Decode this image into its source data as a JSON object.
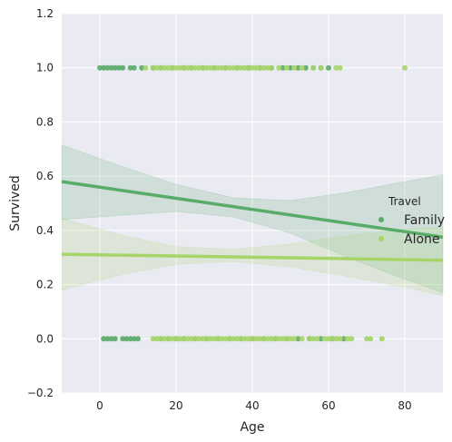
{
  "chart_data": {
    "type": "scatter",
    "xlabel": "Age",
    "ylabel": "Survived",
    "xlim": [
      -10,
      90
    ],
    "ylim": [
      -0.2,
      1.2
    ],
    "x_ticks": [
      "0",
      "20",
      "40",
      "60",
      "80"
    ],
    "y_ticks": [
      "−0.2",
      "0.0",
      "0.2",
      "0.4",
      "0.6",
      "0.8",
      "1.0",
      "1.2"
    ],
    "x_tick_values": [
      0,
      20,
      40,
      60,
      80
    ],
    "y_tick_values": [
      -0.2,
      0.0,
      0.2,
      0.4,
      0.6,
      0.8,
      1.0,
      1.2
    ],
    "grid": true,
    "legend": {
      "title": "Travel",
      "placement": "right"
    },
    "colors": {
      "Family": "#59ab68",
      "Alone": "#a6d469",
      "background": "#eaeaf2",
      "grid": "#ffffff"
    },
    "series": [
      {
        "name": "Family",
        "points": [
          [
            0,
            1
          ],
          [
            1,
            1
          ],
          [
            2,
            1
          ],
          [
            3,
            1
          ],
          [
            4,
            1
          ],
          [
            5,
            1
          ],
          [
            6,
            1
          ],
          [
            8,
            1
          ],
          [
            9,
            1
          ],
          [
            11,
            1
          ],
          [
            14,
            1
          ],
          [
            16,
            1
          ],
          [
            19,
            1
          ],
          [
            22,
            1
          ],
          [
            24,
            1
          ],
          [
            27,
            1
          ],
          [
            30,
            1
          ],
          [
            33,
            1
          ],
          [
            36,
            1
          ],
          [
            39,
            1
          ],
          [
            42,
            1
          ],
          [
            45,
            1
          ],
          [
            48,
            1
          ],
          [
            50,
            1
          ],
          [
            52,
            1
          ],
          [
            54,
            1
          ],
          [
            56,
            1
          ],
          [
            58,
            1
          ],
          [
            60,
            1
          ],
          [
            1,
            0
          ],
          [
            2,
            0
          ],
          [
            3,
            0
          ],
          [
            4,
            0
          ],
          [
            6,
            0
          ],
          [
            7,
            0
          ],
          [
            8,
            0
          ],
          [
            9,
            0
          ],
          [
            10,
            0
          ],
          [
            16,
            0
          ],
          [
            18,
            0
          ],
          [
            20,
            0
          ],
          [
            22,
            0
          ],
          [
            25,
            0
          ],
          [
            28,
            0
          ],
          [
            31,
            0
          ],
          [
            34,
            0
          ],
          [
            37,
            0
          ],
          [
            40,
            0
          ],
          [
            43,
            0
          ],
          [
            46,
            0
          ],
          [
            49,
            0
          ],
          [
            52,
            0
          ],
          [
            55,
            0
          ],
          [
            58,
            0
          ],
          [
            61,
            0
          ],
          [
            64,
            0
          ]
        ],
        "fit": {
          "x": [
            -10,
            90
          ],
          "y": [
            0.58,
            0.375
          ]
        },
        "ci_lower": [
          [
            -10,
            0.44
          ],
          [
            5,
            0.455
          ],
          [
            20,
            0.47
          ],
          [
            35,
            0.45
          ],
          [
            50,
            0.39
          ],
          [
            65,
            0.3
          ],
          [
            80,
            0.22
          ],
          [
            90,
            0.17
          ]
        ],
        "ci_upper": [
          [
            -10,
            0.715
          ],
          [
            5,
            0.64
          ],
          [
            20,
            0.57
          ],
          [
            35,
            0.52
          ],
          [
            50,
            0.51
          ],
          [
            65,
            0.54
          ],
          [
            80,
            0.58
          ],
          [
            90,
            0.605
          ]
        ]
      },
      {
        "name": "Alone",
        "points": [
          [
            12,
            1
          ],
          [
            14,
            1
          ],
          [
            15,
            1
          ],
          [
            16,
            1
          ],
          [
            17,
            1
          ],
          [
            18,
            1
          ],
          [
            19,
            1
          ],
          [
            20,
            1
          ],
          [
            21,
            1
          ],
          [
            22,
            1
          ],
          [
            23,
            1
          ],
          [
            24,
            1
          ],
          [
            25,
            1
          ],
          [
            26,
            1
          ],
          [
            27,
            1
          ],
          [
            28,
            1
          ],
          [
            29,
            1
          ],
          [
            30,
            1
          ],
          [
            31,
            1
          ],
          [
            32,
            1
          ],
          [
            33,
            1
          ],
          [
            34,
            1
          ],
          [
            35,
            1
          ],
          [
            36,
            1
          ],
          [
            37,
            1
          ],
          [
            38,
            1
          ],
          [
            39,
            1
          ],
          [
            40,
            1
          ],
          [
            41,
            1
          ],
          [
            42,
            1
          ],
          [
            43,
            1
          ],
          [
            44,
            1
          ],
          [
            45,
            1
          ],
          [
            47,
            1
          ],
          [
            49,
            1
          ],
          [
            51,
            1
          ],
          [
            53,
            1
          ],
          [
            56,
            1
          ],
          [
            58,
            1
          ],
          [
            62,
            1
          ],
          [
            63,
            1
          ],
          [
            80,
            1
          ],
          [
            14,
            0
          ],
          [
            15,
            0
          ],
          [
            16,
            0
          ],
          [
            17,
            0
          ],
          [
            18,
            0
          ],
          [
            19,
            0
          ],
          [
            20,
            0
          ],
          [
            21,
            0
          ],
          [
            22,
            0
          ],
          [
            23,
            0
          ],
          [
            24,
            0
          ],
          [
            25,
            0
          ],
          [
            26,
            0
          ],
          [
            27,
            0
          ],
          [
            28,
            0
          ],
          [
            29,
            0
          ],
          [
            30,
            0
          ],
          [
            31,
            0
          ],
          [
            32,
            0
          ],
          [
            33,
            0
          ],
          [
            34,
            0
          ],
          [
            35,
            0
          ],
          [
            36,
            0
          ],
          [
            37,
            0
          ],
          [
            38,
            0
          ],
          [
            39,
            0
          ],
          [
            40,
            0
          ],
          [
            41,
            0
          ],
          [
            42,
            0
          ],
          [
            43,
            0
          ],
          [
            44,
            0
          ],
          [
            45,
            0
          ],
          [
            46,
            0
          ],
          [
            47,
            0
          ],
          [
            48,
            0
          ],
          [
            49,
            0
          ],
          [
            50,
            0
          ],
          [
            51,
            0
          ],
          [
            53,
            0
          ],
          [
            55,
            0
          ],
          [
            56,
            0
          ],
          [
            57,
            0
          ],
          [
            59,
            0
          ],
          [
            60,
            0
          ],
          [
            61,
            0
          ],
          [
            62,
            0
          ],
          [
            63,
            0
          ],
          [
            65,
            0
          ],
          [
            66,
            0
          ],
          [
            70,
            0
          ],
          [
            71,
            0
          ],
          [
            74,
            0
          ]
        ],
        "fit": {
          "x": [
            -10,
            90
          ],
          "y": [
            0.312,
            0.29
          ]
        },
        "ci_lower": [
          [
            -10,
            0.18
          ],
          [
            5,
            0.235
          ],
          [
            20,
            0.275
          ],
          [
            35,
            0.285
          ],
          [
            50,
            0.265
          ],
          [
            65,
            0.23
          ],
          [
            80,
            0.19
          ],
          [
            90,
            0.16
          ]
        ],
        "ci_upper": [
          [
            -10,
            0.445
          ],
          [
            5,
            0.385
          ],
          [
            20,
            0.34
          ],
          [
            35,
            0.33
          ],
          [
            50,
            0.35
          ],
          [
            65,
            0.38
          ],
          [
            80,
            0.405
          ],
          [
            90,
            0.41
          ]
        ]
      }
    ]
  }
}
